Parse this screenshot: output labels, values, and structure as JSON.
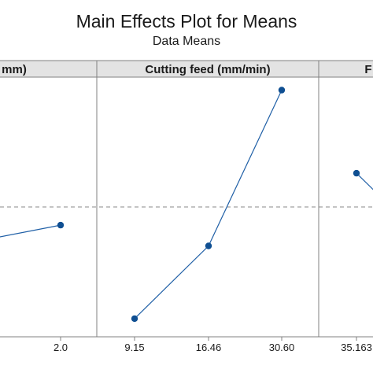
{
  "title": "Main Effects Plot for Means",
  "subtitle": "Data Means",
  "colors": {
    "line": "#1f5fa6",
    "marker": "#0f4f92",
    "header_bg": "#e3e3e3",
    "frame": "#808080",
    "reference_line": "#8a8a8a"
  },
  "chart_data": {
    "type": "line",
    "title": "Main Effects Plot for Means",
    "subtitle": "Data Means",
    "ylabel": "",
    "grand_mean": 0.5,
    "y_range": [
      0,
      1
    ],
    "reference_line": "dashed",
    "panels": [
      {
        "header": "mm)",
        "tick_labels": [
          "",
          "2.0"
        ],
        "points": [
          {
            "x": "",
            "y": 0.38
          },
          {
            "x": "2.0",
            "y": 0.43
          }
        ]
      },
      {
        "header": "Cutting feed (mm/min)",
        "tick_labels": [
          "9.15",
          "16.46",
          "30.60"
        ],
        "points": [
          {
            "x": "9.15",
            "y": 0.07
          },
          {
            "x": "16.46",
            "y": 0.35
          },
          {
            "x": "30.60",
            "y": 0.95
          }
        ]
      },
      {
        "header": "F",
        "tick_labels": [
          "35.163"
        ],
        "points": [
          {
            "x": "35.163",
            "y": 0.63
          },
          {
            "x": "",
            "y": 0.52
          }
        ]
      }
    ]
  }
}
